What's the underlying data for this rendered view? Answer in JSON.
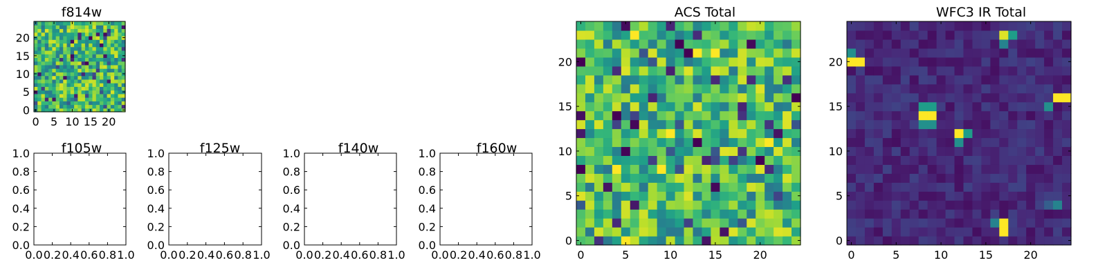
{
  "figure": {
    "background": "#ffffff"
  },
  "colormap": "viridis",
  "chart_data": [
    {
      "id": "f814w",
      "type": "heatmap",
      "title": "f814w",
      "grid_size": 25,
      "xlim": [
        -0.5,
        24.5
      ],
      "ylim": [
        -0.5,
        24.5
      ],
      "xticks": [
        0,
        5,
        10,
        15,
        20
      ],
      "yticks": [
        0,
        5,
        10,
        15,
        20
      ],
      "value_pattern": "noise",
      "seed": 814
    },
    {
      "id": "f105w",
      "type": "heatmap",
      "title": "f105w",
      "empty": true,
      "xlim": [
        0,
        1
      ],
      "ylim": [
        0,
        1
      ],
      "xticks": [
        0.0,
        0.2,
        0.4,
        0.6,
        0.8,
        1.0
      ],
      "yticks": [
        0.0,
        0.2,
        0.4,
        0.6,
        0.8,
        1.0
      ],
      "xtick_labels": [
        "0.0",
        "0.2",
        "0.4",
        "0.6",
        "0.8",
        "1.0"
      ],
      "ytick_labels": [
        "0.0",
        "0.2",
        "0.4",
        "0.6",
        "0.8",
        "1.0"
      ]
    },
    {
      "id": "f125w",
      "type": "heatmap",
      "title": "f125w",
      "empty": true,
      "xlim": [
        0,
        1
      ],
      "ylim": [
        0,
        1
      ],
      "xticks": [
        0.0,
        0.2,
        0.4,
        0.6,
        0.8,
        1.0
      ],
      "yticks": [
        0.0,
        0.2,
        0.4,
        0.6,
        0.8,
        1.0
      ],
      "xtick_labels": [
        "0.0",
        "0.2",
        "0.4",
        "0.6",
        "0.8",
        "1.0"
      ],
      "ytick_labels": [
        "0.0",
        "0.2",
        "0.4",
        "0.6",
        "0.8",
        "1.0"
      ]
    },
    {
      "id": "f140w",
      "type": "heatmap",
      "title": "f140w",
      "empty": true,
      "xlim": [
        0,
        1
      ],
      "ylim": [
        0,
        1
      ],
      "xticks": [
        0.0,
        0.2,
        0.4,
        0.6,
        0.8,
        1.0
      ],
      "yticks": [
        0.0,
        0.2,
        0.4,
        0.6,
        0.8,
        1.0
      ],
      "xtick_labels": [
        "0.0",
        "0.2",
        "0.4",
        "0.6",
        "0.8",
        "1.0"
      ],
      "ytick_labels": [
        "0.0",
        "0.2",
        "0.4",
        "0.6",
        "0.8",
        "1.0"
      ]
    },
    {
      "id": "f160w",
      "type": "heatmap",
      "title": "f160w",
      "empty": true,
      "xlim": [
        0,
        1
      ],
      "ylim": [
        0,
        1
      ],
      "xticks": [
        0.0,
        0.2,
        0.4,
        0.6,
        0.8,
        1.0
      ],
      "yticks": [
        0.0,
        0.2,
        0.4,
        0.6,
        0.8,
        1.0
      ],
      "xtick_labels": [
        "0.0",
        "0.2",
        "0.4",
        "0.6",
        "0.8",
        "1.0"
      ],
      "ytick_labels": [
        "0.0",
        "0.2",
        "0.4",
        "0.6",
        "0.8",
        "1.0"
      ]
    },
    {
      "id": "acs-total",
      "type": "heatmap",
      "title": "ACS Total",
      "grid_size": 25,
      "xlim": [
        -0.5,
        24.5
      ],
      "ylim": [
        -0.5,
        24.5
      ],
      "xticks": [
        0,
        5,
        10,
        15,
        20
      ],
      "yticks": [
        0,
        5,
        10,
        15,
        20
      ],
      "value_pattern": "noise",
      "seed": 1701,
      "hot_cells": [
        {
          "x": 6,
          "y": 23,
          "v": 1.0
        },
        {
          "x": 13,
          "y": 21,
          "v": 1.0
        },
        {
          "x": 15,
          "y": 21,
          "v": 1.0
        },
        {
          "x": 12,
          "y": 19,
          "v": 0.95
        },
        {
          "x": 16,
          "y": 19,
          "v": 0.9
        },
        {
          "x": 20,
          "y": 17,
          "v": 0.95
        },
        {
          "x": 10,
          "y": 12,
          "v": 1.0
        },
        {
          "x": 21,
          "y": 11,
          "v": 1.0
        },
        {
          "x": 16,
          "y": 10,
          "v": 0.95
        },
        {
          "x": 20,
          "y": 8,
          "v": 0.95
        },
        {
          "x": 5,
          "y": 0,
          "v": 1.0
        },
        {
          "x": 17,
          "y": 1,
          "v": 0.95
        },
        {
          "x": 23,
          "y": 14,
          "v": 0.95
        },
        {
          "x": 9,
          "y": 8,
          "v": 1.0
        },
        {
          "x": 0,
          "y": 5,
          "v": 0.95
        },
        {
          "x": 4,
          "y": 8,
          "v": 1.0
        },
        {
          "x": 0,
          "y": 20,
          "v": 0.0
        },
        {
          "x": 12,
          "y": 21,
          "v": 0.0
        },
        {
          "x": 4,
          "y": 14,
          "v": 0.0
        },
        {
          "x": 13,
          "y": 11,
          "v": 0.0
        },
        {
          "x": 20,
          "y": 9,
          "v": 0.0
        },
        {
          "x": 0,
          "y": 8,
          "v": 0.0
        },
        {
          "x": 3,
          "y": 6,
          "v": 0.05
        },
        {
          "x": 24,
          "y": 16,
          "v": 0.0
        },
        {
          "x": 22,
          "y": 12,
          "v": 0.05
        },
        {
          "x": 18,
          "y": 15,
          "v": 0.1
        },
        {
          "x": 8,
          "y": 16,
          "v": 0.1
        },
        {
          "x": 16,
          "y": 1,
          "v": 0.05
        }
      ]
    },
    {
      "id": "wfc3-ir-total",
      "type": "heatmap",
      "title": "WFC3 IR Total",
      "grid_size": 25,
      "xlim": [
        -0.5,
        24.5
      ],
      "ylim": [
        -0.5,
        24.5
      ],
      "xticks": [
        0,
        5,
        10,
        15,
        20
      ],
      "yticks": [
        0,
        5,
        10,
        15,
        20
      ],
      "value_pattern": "background",
      "seed": 160,
      "hot_cells": [
        {
          "x": 0,
          "y": 20,
          "v": 1.0
        },
        {
          "x": 1,
          "y": 20,
          "v": 1.0
        },
        {
          "x": 0,
          "y": 21,
          "v": 0.5
        },
        {
          "x": 17,
          "y": 23,
          "v": 0.95
        },
        {
          "x": 18,
          "y": 23,
          "v": 0.55
        },
        {
          "x": 17,
          "y": 22,
          "v": 0.45
        },
        {
          "x": 23,
          "y": 16,
          "v": 1.0
        },
        {
          "x": 24,
          "y": 16,
          "v": 1.0
        },
        {
          "x": 22,
          "y": 15,
          "v": 0.5
        },
        {
          "x": 8,
          "y": 14,
          "v": 1.0
        },
        {
          "x": 9,
          "y": 14,
          "v": 1.0
        },
        {
          "x": 8,
          "y": 15,
          "v": 0.55
        },
        {
          "x": 9,
          "y": 15,
          "v": 0.55
        },
        {
          "x": 8,
          "y": 13,
          "v": 0.5
        },
        {
          "x": 9,
          "y": 13,
          "v": 0.5
        },
        {
          "x": 12,
          "y": 12,
          "v": 1.0
        },
        {
          "x": 13,
          "y": 12,
          "v": 0.55
        },
        {
          "x": 12,
          "y": 11,
          "v": 0.5
        },
        {
          "x": 17,
          "y": 2,
          "v": 1.0
        },
        {
          "x": 17,
          "y": 1,
          "v": 1.0
        },
        {
          "x": 16,
          "y": 2,
          "v": 0.45
        },
        {
          "x": 23,
          "y": 4,
          "v": 0.45
        },
        {
          "x": 22,
          "y": 4,
          "v": 0.3
        }
      ]
    }
  ]
}
